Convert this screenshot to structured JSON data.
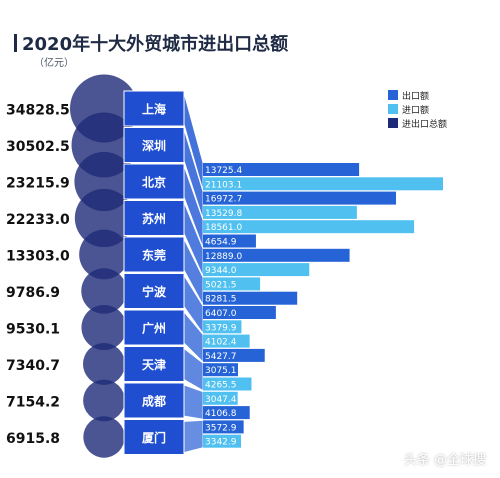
{
  "chart_data": {
    "type": "bar",
    "title": "2020年十大外贸城市进出口总额",
    "unit": "（亿元）",
    "legend_position": "top-right",
    "categories": [
      "上海",
      "深圳",
      "北京",
      "苏州",
      "东莞",
      "宁波",
      "广州",
      "天津",
      "成都",
      "厦门"
    ],
    "totals": [
      "34828.5",
      "30502.5",
      "23215.9",
      "22233.0",
      "13303.0",
      "9786.9",
      "9530.1",
      "7340.7",
      "7154.2",
      "6915.8"
    ],
    "series": [
      {
        "name": "出口额",
        "color": "#2563d6",
        "values": [
          13725.4,
          16972.7,
          4654.9,
          12889.0,
          8281.5,
          6407.0,
          5427.7,
          3075.1,
          4106.8,
          3572.9
        ],
        "labels": [
          "13725.4",
          "16972.7",
          "4654.9",
          "12889.0",
          "8281.5",
          "6407.0",
          "5427.7",
          "3075.1",
          "4106.8",
          "3572.9"
        ]
      },
      {
        "name": "进口额",
        "color": "#4fc0f0",
        "values": [
          21103.1,
          13529.8,
          18561.0,
          9344.0,
          5021.5,
          3379.9,
          4102.4,
          4265.5,
          3047.4,
          3342.9
        ],
        "labels": [
          "21103.1",
          "13529.8",
          "18561.0",
          "9344.0",
          "5021.5",
          "3379.9",
          "4102.4",
          "4265.5",
          "3047.4",
          "3342.9"
        ]
      },
      {
        "name": "进出口总额",
        "color": "#1e2a78"
      }
    ],
    "colors": {
      "header": "#1f2a44",
      "category_box": "#1e4fc8",
      "circle": "#1e2a78"
    }
  },
  "watermark": "头条 @全球搜"
}
